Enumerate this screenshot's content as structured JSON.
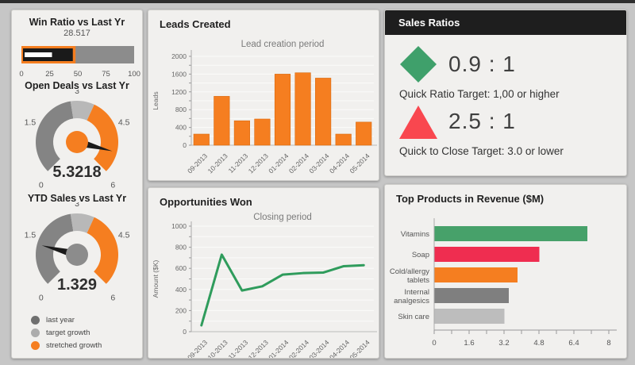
{
  "page": {
    "background": "#C6C6C6",
    "top_strip_color": "#2E2E2E"
  },
  "colors": {
    "orange": "#F57E20",
    "gauge_dark_gray": "#848484",
    "gauge_light_gray": "#B8B8B8",
    "needle_black": "#1A1A1A",
    "green_bar": "#47A16A",
    "green_line": "#2F9C5C",
    "red_bar": "#EF2D50",
    "triangle_red": "#F9474F",
    "diamond_green": "#3FA06B",
    "hbar_dark_gray": "#7F7F7F",
    "hbar_light_gray": "#BDBDBD"
  },
  "left_panel": {
    "win_ratio": {
      "title": "Win Ratio vs Last Yr"
    },
    "open_deals": {
      "title": "Open Deals vs Last Yr"
    },
    "ytd_sales": {
      "title": "YTD Sales vs Last Yr"
    },
    "legend": {
      "items": [
        {
          "label": "last year",
          "color": "#6F6F6F"
        },
        {
          "label": "target growth",
          "color": "#ACACAC"
        },
        {
          "label": "stretched growth",
          "color": "#F57E20"
        }
      ]
    }
  },
  "leads_panel": {
    "title": "Leads Created"
  },
  "opps_panel": {
    "title": "Opportunities Won"
  },
  "ratios_panel": {
    "header": "Sales Ratios",
    "quick_ratio": {
      "value": "0.9 : 1",
      "target": "Quick Ratio Target: 1,00 or higher"
    },
    "quick_to_close": {
      "value": "2.5 : 1",
      "target": "Quick to Close Target: 3.0 or lower"
    }
  },
  "products_panel": {
    "title": "Top Products in Revenue ($M)"
  },
  "chart_data": [
    {
      "type": "bullet",
      "title": "Win Ratio vs Last Yr",
      "value": 28.517,
      "value_label": "28.517",
      "range": [
        0,
        100
      ],
      "ticks": [
        0,
        25,
        50,
        75,
        100
      ],
      "orange_band_to": 48,
      "black_band_to": 47,
      "track_color": "#8C8C8C",
      "band_color": "#F57E20",
      "inner_bar_color": "#1A1A1A",
      "measure_color": "#FFFFFF"
    },
    {
      "type": "gauge",
      "title": "Open Deals vs Last Yr",
      "value": 5.3218,
      "value_label": "5.3218",
      "min": 0,
      "max": 6,
      "ticks": [
        0,
        1.5,
        3,
        4.5,
        6
      ],
      "zones": [
        {
          "name": "last year",
          "from": 0,
          "to": 2.8,
          "color": "#848484"
        },
        {
          "name": "target growth",
          "from": 2.8,
          "to": 3.55,
          "color": "#B8B8B8"
        },
        {
          "name": "stretched growth",
          "from": 3.55,
          "to": 6,
          "color": "#F57E20"
        }
      ],
      "center_color": "#F57E20"
    },
    {
      "type": "gauge",
      "title": "YTD Sales vs Last Yr",
      "value": 1.329,
      "value_label": "1.329",
      "min": 0,
      "max": 6,
      "ticks": [
        0,
        1.5,
        3,
        4.5,
        6
      ],
      "zones": [
        {
          "name": "last year",
          "from": 0,
          "to": 2.8,
          "color": "#848484"
        },
        {
          "name": "target growth",
          "from": 2.8,
          "to": 3.55,
          "color": "#B8B8B8"
        },
        {
          "name": "stretched growth",
          "from": 3.55,
          "to": 6,
          "color": "#F57E20"
        }
      ],
      "center_color": "#8C8C8C"
    },
    {
      "type": "bar",
      "title": "Lead creation period",
      "ylabel": "Leads",
      "categories": [
        "09-2013",
        "10-2013",
        "11-2013",
        "12-2013",
        "01-2014",
        "02-2014",
        "03-2014",
        "04-2014",
        "05-2014"
      ],
      "values": [
        250,
        1100,
        550,
        590,
        1600,
        1630,
        1510,
        250,
        520
      ],
      "ylim": [
        0,
        2000
      ],
      "ytick_labeled_step": 400,
      "ytick_minor_step": 200,
      "bar_color": "#F57E20",
      "grid": true
    },
    {
      "type": "line",
      "title": "Closing period",
      "ylabel": "Amount ($K)",
      "categories": [
        "09-2013",
        "10-2013",
        "11-2013",
        "12-2013",
        "01-2014",
        "02-2014",
        "03-2014",
        "04-2014",
        "05-2014"
      ],
      "values": [
        60,
        730,
        390,
        430,
        540,
        555,
        560,
        620,
        630
      ],
      "ylim": [
        0,
        1000
      ],
      "ytick_labeled_step": 200,
      "ytick_minor_step": 100,
      "line_color": "#2F9C5C",
      "grid": true
    },
    {
      "type": "hbar",
      "title": "Top Products in Revenue ($M)",
      "categories": [
        "Vitamins",
        "Soap",
        "Cold/allergy tablets",
        "Internal analgesics",
        "Skin care"
      ],
      "label_lines": [
        [
          "Vitamins"
        ],
        [
          "Soap"
        ],
        [
          "Cold/allergy",
          "tablets"
        ],
        [
          "Internal",
          "analgesics"
        ],
        [
          "Skin care"
        ]
      ],
      "values": [
        7.0,
        4.8,
        3.8,
        3.4,
        3.2
      ],
      "bar_colors": [
        "#47A16A",
        "#EF2D50",
        "#F57E20",
        "#7F7F7F",
        "#BDBDBD"
      ],
      "xlim": [
        0,
        8
      ],
      "xticks": [
        0,
        1.6,
        3.2,
        4.8,
        6.4,
        8
      ],
      "xtick_minor_step": 0.8
    }
  ]
}
